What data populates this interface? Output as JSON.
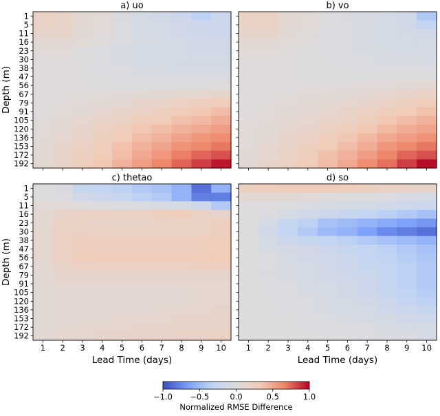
{
  "chart_data": {
    "type": "heatmap",
    "x_label": "Lead Time (days)",
    "y_label": "Depth (m)",
    "x_ticks": [
      "1",
      "2",
      "3",
      "4",
      "5",
      "6",
      "7",
      "8",
      "9",
      "10"
    ],
    "y_ticks": [
      "1",
      "5",
      "11",
      "16",
      "23",
      "30",
      "38",
      "47",
      "56",
      "67",
      "79",
      "91",
      "105",
      "120",
      "136",
      "153",
      "172",
      "192"
    ],
    "colorbar": {
      "label": "Normalized RMSE Difference",
      "vmin": -1.0,
      "vmax": 1.0,
      "ticks": [
        "−1.0",
        "−0.5",
        "0.0",
        "0.5",
        "1.0"
      ],
      "colormap": "coolwarm",
      "stops": [
        "#3b4cc0",
        "#7b9ff9",
        "#c0d4f5",
        "#dddcdc",
        "#f2cbb7",
        "#ee8468",
        "#b40426"
      ]
    },
    "panels": [
      {
        "title": "a) uo",
        "values": [
          [
            0.2,
            0.18,
            0.1,
            0.05,
            -0.05,
            -0.1,
            -0.15,
            -0.2,
            -0.35,
            -0.2
          ],
          [
            0.2,
            0.18,
            0.1,
            0.05,
            -0.05,
            -0.1,
            -0.12,
            -0.15,
            -0.2,
            -0.2
          ],
          [
            0.15,
            0.15,
            0.08,
            0.03,
            -0.05,
            -0.1,
            -0.12,
            -0.15,
            -0.18,
            -0.2
          ],
          [
            0.1,
            0.1,
            0.05,
            0.02,
            -0.05,
            -0.08,
            -0.1,
            -0.12,
            -0.15,
            -0.15
          ],
          [
            0.05,
            0.05,
            0.0,
            -0.05,
            -0.08,
            -0.1,
            -0.12,
            -0.12,
            -0.15,
            -0.15
          ],
          [
            0.03,
            0.03,
            0.0,
            -0.05,
            -0.08,
            -0.1,
            -0.1,
            -0.12,
            -0.12,
            -0.12
          ],
          [
            0.02,
            0.02,
            0.0,
            -0.03,
            -0.05,
            -0.08,
            -0.08,
            -0.1,
            -0.1,
            -0.1
          ],
          [
            0.02,
            0.02,
            0.0,
            -0.02,
            -0.03,
            -0.05,
            -0.05,
            -0.05,
            -0.05,
            -0.05
          ],
          [
            0.02,
            0.02,
            0.02,
            0.0,
            -0.02,
            -0.02,
            0.0,
            0.0,
            0.0,
            0.02
          ],
          [
            0.02,
            0.02,
            0.02,
            0.03,
            0.03,
            0.05,
            0.08,
            0.1,
            0.12,
            0.15
          ],
          [
            0.02,
            0.03,
            0.05,
            0.08,
            0.1,
            0.15,
            0.18,
            0.22,
            0.25,
            0.3
          ],
          [
            0.02,
            0.05,
            0.08,
            0.12,
            0.15,
            0.2,
            0.25,
            0.3,
            0.35,
            0.4
          ],
          [
            0.03,
            0.08,
            0.12,
            0.18,
            0.22,
            0.28,
            0.32,
            0.38,
            0.42,
            0.48
          ],
          [
            0.05,
            0.1,
            0.15,
            0.22,
            0.28,
            0.35,
            0.4,
            0.45,
            0.5,
            0.55
          ],
          [
            0.05,
            0.12,
            0.18,
            0.25,
            0.32,
            0.4,
            0.45,
            0.52,
            0.58,
            0.62
          ],
          [
            0.08,
            0.15,
            0.22,
            0.3,
            0.38,
            0.45,
            0.52,
            0.6,
            0.65,
            0.7
          ],
          [
            0.08,
            0.15,
            0.25,
            0.32,
            0.4,
            0.5,
            0.58,
            0.68,
            0.75,
            0.8
          ],
          [
            0.1,
            0.18,
            0.28,
            0.35,
            0.45,
            0.55,
            0.65,
            0.75,
            0.85,
            0.95
          ]
        ]
      },
      {
        "title": "b) vo",
        "values": [
          [
            0.2,
            0.2,
            0.1,
            0.05,
            -0.02,
            -0.05,
            -0.08,
            -0.1,
            -0.15,
            -0.4
          ],
          [
            0.2,
            0.2,
            0.1,
            0.05,
            -0.02,
            -0.05,
            -0.08,
            -0.1,
            -0.15,
            -0.3
          ],
          [
            0.15,
            0.15,
            0.08,
            0.03,
            -0.03,
            -0.05,
            -0.08,
            -0.1,
            -0.12,
            -0.15
          ],
          [
            0.1,
            0.1,
            0.05,
            0.02,
            -0.03,
            -0.05,
            -0.08,
            -0.1,
            -0.1,
            -0.12
          ],
          [
            0.05,
            0.05,
            0.02,
            0.0,
            -0.03,
            -0.05,
            -0.08,
            -0.08,
            -0.1,
            -0.1
          ],
          [
            0.03,
            0.03,
            0.02,
            0.0,
            -0.02,
            -0.05,
            -0.05,
            -0.08,
            -0.08,
            -0.08
          ],
          [
            0.02,
            0.02,
            0.02,
            0.0,
            -0.02,
            -0.02,
            -0.03,
            -0.05,
            -0.05,
            -0.05
          ],
          [
            0.02,
            0.02,
            0.02,
            0.0,
            0.0,
            0.0,
            0.0,
            0.0,
            0.0,
            0.0
          ],
          [
            0.02,
            0.02,
            0.02,
            0.02,
            0.02,
            0.03,
            0.05,
            0.05,
            0.08,
            0.1
          ],
          [
            0.02,
            0.02,
            0.03,
            0.05,
            0.05,
            0.08,
            0.1,
            0.12,
            0.15,
            0.2
          ],
          [
            0.02,
            0.03,
            0.05,
            0.08,
            0.1,
            0.12,
            0.15,
            0.2,
            0.25,
            0.3
          ],
          [
            0.02,
            0.05,
            0.08,
            0.1,
            0.12,
            0.18,
            0.22,
            0.28,
            0.32,
            0.38
          ],
          [
            0.03,
            0.05,
            0.1,
            0.12,
            0.18,
            0.22,
            0.28,
            0.35,
            0.4,
            0.45
          ],
          [
            0.05,
            0.08,
            0.12,
            0.15,
            0.22,
            0.28,
            0.35,
            0.42,
            0.48,
            0.52
          ],
          [
            0.05,
            0.1,
            0.15,
            0.2,
            0.28,
            0.35,
            0.42,
            0.5,
            0.55,
            0.6
          ],
          [
            0.05,
            0.12,
            0.18,
            0.25,
            0.32,
            0.4,
            0.48,
            0.58,
            0.65,
            0.7
          ],
          [
            0.08,
            0.12,
            0.2,
            0.28,
            0.38,
            0.45,
            0.55,
            0.65,
            0.75,
            0.8
          ],
          [
            0.1,
            0.15,
            0.22,
            0.3,
            0.4,
            0.5,
            0.62,
            0.72,
            0.85,
            0.98
          ]
        ]
      },
      {
        "title": "c) thetao",
        "values": [
          [
            0.0,
            -0.05,
            -0.25,
            -0.3,
            -0.35,
            -0.4,
            -0.45,
            -0.55,
            -0.85,
            -0.55
          ],
          [
            0.0,
            -0.05,
            -0.15,
            -0.2,
            -0.25,
            -0.35,
            -0.4,
            -0.55,
            -0.8,
            -0.8
          ],
          [
            0.05,
            0.05,
            0.02,
            0.0,
            -0.03,
            -0.05,
            -0.08,
            -0.1,
            -0.2,
            -0.4
          ],
          [
            0.1,
            0.18,
            0.2,
            0.2,
            0.2,
            0.2,
            0.25,
            0.3,
            0.2,
            0.15
          ],
          [
            0.1,
            0.2,
            0.2,
            0.18,
            0.18,
            0.18,
            0.2,
            0.2,
            0.2,
            0.25
          ],
          [
            0.12,
            0.22,
            0.22,
            0.2,
            0.2,
            0.2,
            0.2,
            0.2,
            0.2,
            0.25
          ],
          [
            0.12,
            0.22,
            0.25,
            0.25,
            0.25,
            0.25,
            0.25,
            0.25,
            0.28,
            0.3
          ],
          [
            0.12,
            0.22,
            0.25,
            0.25,
            0.25,
            0.25,
            0.25,
            0.25,
            0.28,
            0.3
          ],
          [
            0.12,
            0.22,
            0.28,
            0.3,
            0.3,
            0.3,
            0.3,
            0.3,
            0.3,
            0.32
          ],
          [
            0.1,
            0.18,
            0.22,
            0.22,
            0.22,
            0.22,
            0.22,
            0.22,
            0.25,
            0.25
          ],
          [
            0.08,
            0.15,
            0.15,
            0.15,
            0.15,
            0.15,
            0.15,
            0.15,
            0.15,
            0.15
          ],
          [
            0.08,
            0.12,
            0.12,
            0.12,
            0.12,
            0.12,
            0.12,
            0.12,
            0.12,
            0.12
          ],
          [
            0.08,
            0.1,
            0.1,
            0.1,
            0.1,
            0.1,
            0.1,
            0.1,
            0.12,
            0.12
          ],
          [
            0.08,
            0.1,
            0.1,
            0.1,
            0.1,
            0.1,
            0.1,
            0.1,
            0.12,
            0.12
          ],
          [
            0.08,
            0.1,
            0.1,
            0.1,
            0.1,
            0.1,
            0.12,
            0.12,
            0.12,
            0.15
          ],
          [
            0.08,
            0.1,
            0.1,
            0.1,
            0.12,
            0.12,
            0.12,
            0.15,
            0.15,
            0.15
          ],
          [
            0.08,
            0.1,
            0.12,
            0.12,
            0.12,
            0.15,
            0.15,
            0.18,
            0.18,
            0.18
          ],
          [
            0.08,
            0.12,
            0.12,
            0.15,
            0.15,
            0.18,
            0.18,
            0.2,
            0.2,
            0.22
          ]
        ]
      },
      {
        "title": "d) so",
        "values": [
          [
            0.25,
            0.28,
            0.3,
            0.3,
            0.3,
            0.28,
            0.25,
            0.22,
            0.2,
            0.18
          ],
          [
            0.1,
            0.1,
            0.08,
            0.05,
            0.03,
            0.0,
            -0.02,
            -0.05,
            -0.08,
            -0.1
          ],
          [
            0.02,
            0.02,
            -0.02,
            -0.05,
            -0.08,
            -0.1,
            -0.12,
            -0.15,
            -0.18,
            -0.2
          ],
          [
            0.0,
            -0.05,
            -0.1,
            -0.15,
            -0.2,
            -0.25,
            -0.3,
            -0.35,
            -0.4,
            -0.45
          ],
          [
            0.0,
            -0.1,
            -0.25,
            -0.35,
            -0.45,
            -0.5,
            -0.55,
            -0.6,
            -0.65,
            -0.7
          ],
          [
            0.0,
            -0.15,
            -0.3,
            -0.4,
            -0.5,
            -0.55,
            -0.65,
            -0.75,
            -0.8,
            -0.85
          ],
          [
            0.0,
            -0.1,
            -0.2,
            -0.25,
            -0.3,
            -0.35,
            -0.4,
            -0.45,
            -0.5,
            -0.55
          ],
          [
            0.0,
            -0.08,
            -0.12,
            -0.15,
            -0.2,
            -0.25,
            -0.3,
            -0.35,
            -0.4,
            -0.45
          ],
          [
            0.0,
            -0.05,
            -0.1,
            -0.15,
            -0.18,
            -0.22,
            -0.28,
            -0.32,
            -0.38,
            -0.42
          ],
          [
            0.0,
            -0.05,
            -0.08,
            -0.12,
            -0.15,
            -0.2,
            -0.25,
            -0.3,
            -0.35,
            -0.4
          ],
          [
            0.0,
            -0.05,
            -0.08,
            -0.1,
            -0.15,
            -0.18,
            -0.22,
            -0.28,
            -0.35,
            -0.4
          ],
          [
            0.0,
            -0.03,
            -0.05,
            -0.1,
            -0.12,
            -0.15,
            -0.2,
            -0.28,
            -0.35,
            -0.4
          ],
          [
            0.0,
            -0.03,
            -0.05,
            -0.08,
            -0.1,
            -0.15,
            -0.2,
            -0.25,
            -0.32,
            -0.38
          ],
          [
            0.0,
            -0.02,
            -0.05,
            -0.05,
            -0.08,
            -0.12,
            -0.15,
            -0.2,
            -0.28,
            -0.35
          ],
          [
            0.0,
            -0.02,
            -0.03,
            -0.05,
            -0.08,
            -0.1,
            -0.12,
            -0.18,
            -0.22,
            -0.25
          ],
          [
            0.0,
            -0.02,
            -0.02,
            -0.03,
            -0.05,
            -0.08,
            -0.1,
            -0.12,
            -0.15,
            -0.18
          ],
          [
            0.0,
            0.0,
            -0.02,
            -0.02,
            -0.03,
            -0.05,
            -0.05,
            -0.08,
            -0.1,
            -0.12
          ],
          [
            0.0,
            0.0,
            0.0,
            -0.02,
            -0.02,
            -0.02,
            -0.03,
            -0.05,
            -0.05,
            -0.08
          ]
        ]
      }
    ]
  }
}
